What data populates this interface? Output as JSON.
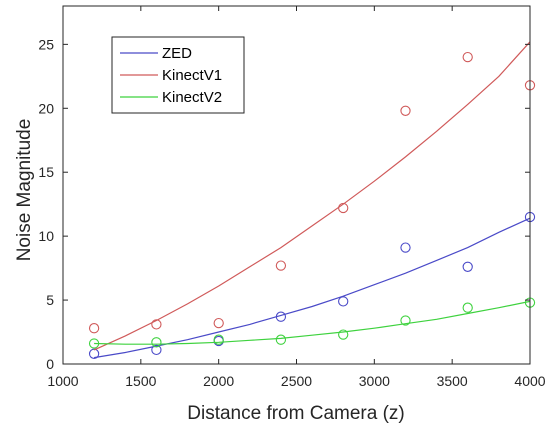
{
  "chart_data": {
    "type": "scatter",
    "xlabel": "Distance from Camera (z)",
    "ylabel": "Noise Magnitude",
    "xlim": [
      1000,
      4000
    ],
    "ylim": [
      0,
      28
    ],
    "xticks": [
      1000,
      1500,
      2000,
      2500,
      3000,
      3500,
      4000
    ],
    "yticks": [
      0,
      5,
      10,
      15,
      20,
      25
    ],
    "grid": false,
    "legend": "top-left",
    "series": [
      {
        "name": "ZED",
        "color": "#4a4ac8",
        "x": [
          1200,
          1600,
          2000,
          2400,
          2800,
          3200,
          3600,
          4000
        ],
        "y": [
          0.8,
          1.1,
          1.8,
          3.7,
          4.9,
          9.1,
          7.6,
          11.5
        ],
        "fit_x": [
          1200,
          1400,
          1600,
          1800,
          2000,
          2200,
          2400,
          2600,
          2800,
          3000,
          3200,
          3400,
          3600,
          3800,
          4000
        ],
        "fit_y": [
          0.5,
          0.9,
          1.4,
          1.9,
          2.5,
          3.1,
          3.8,
          4.5,
          5.3,
          6.2,
          7.1,
          8.1,
          9.1,
          10.3,
          11.4
        ]
      },
      {
        "name": "KinectV1",
        "color": "#d05a5a",
        "x": [
          1200,
          1600,
          2000,
          2400,
          2800,
          3200,
          3600,
          4000
        ],
        "y": [
          2.8,
          3.1,
          3.2,
          7.7,
          12.2,
          19.8,
          24.0,
          21.8
        ],
        "fit_x": [
          1200,
          1400,
          1600,
          1800,
          2000,
          2200,
          2400,
          2600,
          2800,
          3000,
          3200,
          3400,
          3600,
          3800,
          4000
        ],
        "fit_y": [
          1.1,
          2.2,
          3.4,
          4.7,
          6.1,
          7.6,
          9.1,
          10.8,
          12.5,
          14.3,
          16.2,
          18.2,
          20.3,
          22.5,
          25.2
        ]
      },
      {
        "name": "KinectV2",
        "color": "#3ed23e",
        "x": [
          1200,
          1600,
          2000,
          2400,
          2800,
          3200,
          3600,
          4000
        ],
        "y": [
          1.6,
          1.7,
          1.9,
          1.9,
          2.3,
          3.4,
          4.4,
          4.8
        ],
        "fit_x": [
          1200,
          1400,
          1600,
          1800,
          2000,
          2200,
          2400,
          2600,
          2800,
          3000,
          3200,
          3400,
          3600,
          3800,
          4000
        ],
        "fit_y": [
          1.6,
          1.55,
          1.55,
          1.6,
          1.7,
          1.85,
          2.0,
          2.25,
          2.5,
          2.8,
          3.15,
          3.5,
          3.95,
          4.4,
          4.9
        ]
      }
    ]
  }
}
